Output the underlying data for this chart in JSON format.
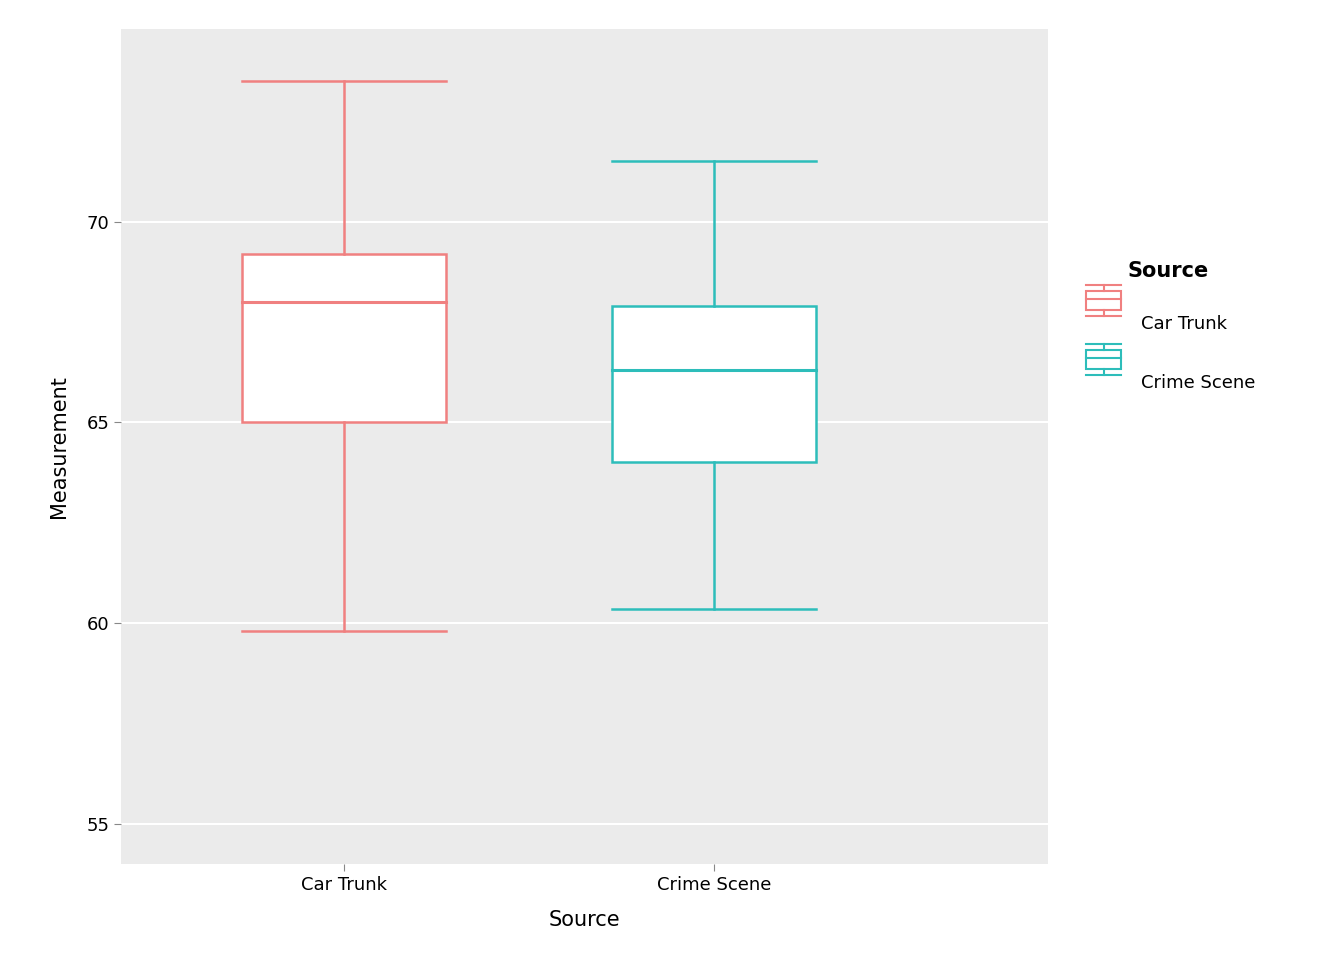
{
  "title": "",
  "xlabel": "Source",
  "ylabel": "Measurement",
  "background_color": "#EBEBEB",
  "grid_color": "#FFFFFF",
  "ylim": [
    54.0,
    74.8
  ],
  "yticks": [
    55,
    60,
    65,
    70
  ],
  "categories": [
    "Car Trunk",
    "Crime Scene"
  ],
  "box_data": {
    "Car Trunk": {
      "whisker_low": 59.8,
      "q1": 65.0,
      "median": 68.0,
      "q3": 69.2,
      "whisker_high": 73.5,
      "color": "#F08080"
    },
    "Crime Scene": {
      "whisker_low": 60.35,
      "q1": 64.0,
      "median": 66.3,
      "q3": 67.9,
      "whisker_high": 71.5,
      "color": "#2DBDBA"
    }
  },
  "legend_title": "Source",
  "legend_entries": [
    "Car Trunk",
    "Crime Scene"
  ],
  "legend_colors": [
    "#F08080",
    "#2DBDBA"
  ],
  "axis_label_fontsize": 15,
  "tick_label_fontsize": 13,
  "legend_fontsize": 13,
  "legend_title_fontsize": 15,
  "box_width": 0.55,
  "linewidth": 1.8,
  "median_linewidth": 2.2
}
